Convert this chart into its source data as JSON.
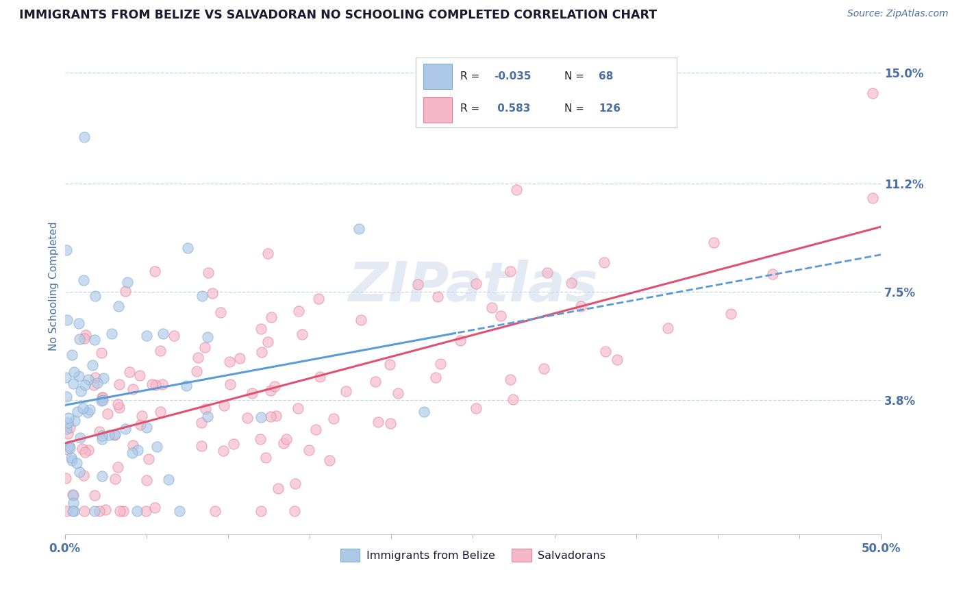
{
  "title": "IMMIGRANTS FROM BELIZE VS SALVADORAN NO SCHOOLING COMPLETED CORRELATION CHART",
  "source_text": "Source: ZipAtlas.com",
  "ylabel": "No Schooling Completed",
  "x_min": 0.0,
  "x_max": 0.5,
  "y_min": -0.008,
  "y_max": 0.162,
  "y_ticks": [
    0.038,
    0.075,
    0.112,
    0.15
  ],
  "y_tick_labels": [
    "3.8%",
    "7.5%",
    "11.2%",
    "15.0%"
  ],
  "x_tick_ends": [
    0.0,
    0.5
  ],
  "x_tick_end_labels": [
    "0.0%",
    "50.0%"
  ],
  "x_minor_ticks": [
    0.05,
    0.1,
    0.15,
    0.2,
    0.25,
    0.3,
    0.35,
    0.4,
    0.45
  ],
  "belize_color": "#aec9e8",
  "belize_edge_color": "#7aafd4",
  "salvadoran_color": "#f5b8c8",
  "salvadoran_edge_color": "#e8809a",
  "belize_R": -0.035,
  "belize_N": 68,
  "salvadoran_R": 0.583,
  "salvadoran_N": 126,
  "belize_trend_color": "#5b9bd5",
  "salvadoran_trend_color": "#e05070",
  "watermark": "ZIPatlas",
  "watermark_color": "#ccdaec",
  "legend_label_belize": "Immigrants from Belize",
  "legend_label_salvadoran": "Salvadorans",
  "title_color": "#1a1a2e",
  "tick_label_color": "#4a6fa5",
  "background_color": "#ffffff",
  "grid_color": "#b8cce0",
  "seed": 42,
  "dot_size": 120,
  "dot_alpha": 0.65
}
